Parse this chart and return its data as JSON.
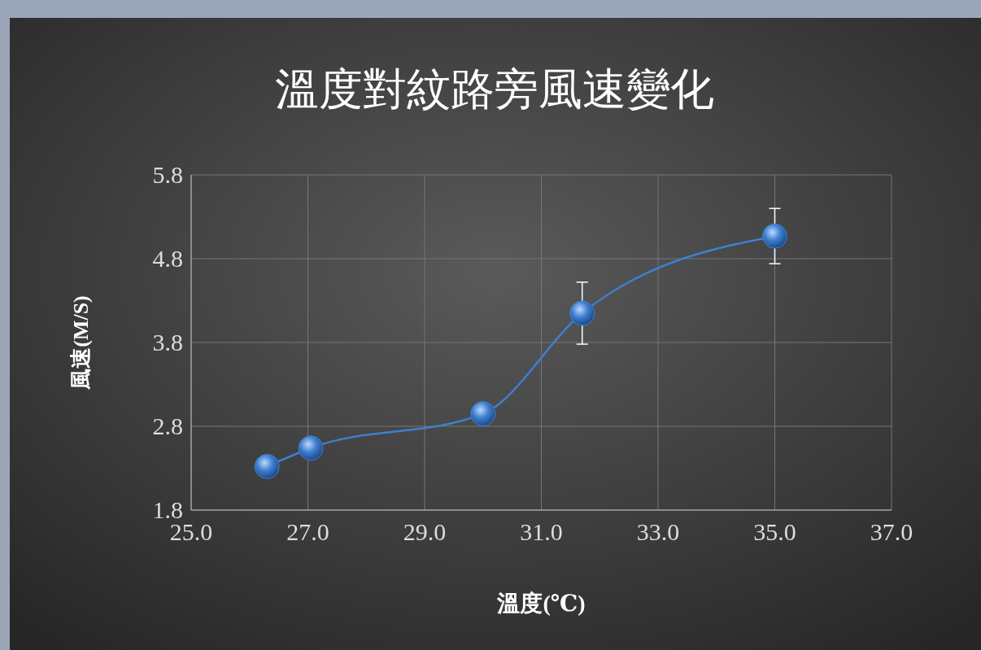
{
  "chart_data": {
    "type": "line",
    "title": "溫度對紋路旁風速變化",
    "xlabel": "溫度(℃)",
    "ylabel": "風速(M/S)",
    "x": [
      26.3,
      27.05,
      30.0,
      31.7,
      35.0
    ],
    "series": [
      {
        "color": "#3f7fd0",
        "values": [
          2.32,
          2.54,
          2.95,
          4.15,
          5.07
        ],
        "errors": [
          null,
          null,
          null,
          0.37,
          0.33
        ]
      }
    ],
    "xlim": [
      25,
      37
    ],
    "xticks": [
      {
        "value": 25,
        "label": "25.0"
      },
      {
        "value": 27,
        "label": "27.0"
      },
      {
        "value": 29,
        "label": "29.0"
      },
      {
        "value": 31,
        "label": "31.0"
      },
      {
        "value": 33,
        "label": "33.0"
      },
      {
        "value": 35,
        "label": "35.0"
      },
      {
        "value": 37,
        "label": "37.0"
      }
    ],
    "ylim": [
      1.8,
      5.8
    ],
    "yticks": [
      1.8,
      2.8,
      3.8,
      4.8,
      5.8
    ],
    "grid": true,
    "marker": "circle",
    "line_style": "solid"
  }
}
